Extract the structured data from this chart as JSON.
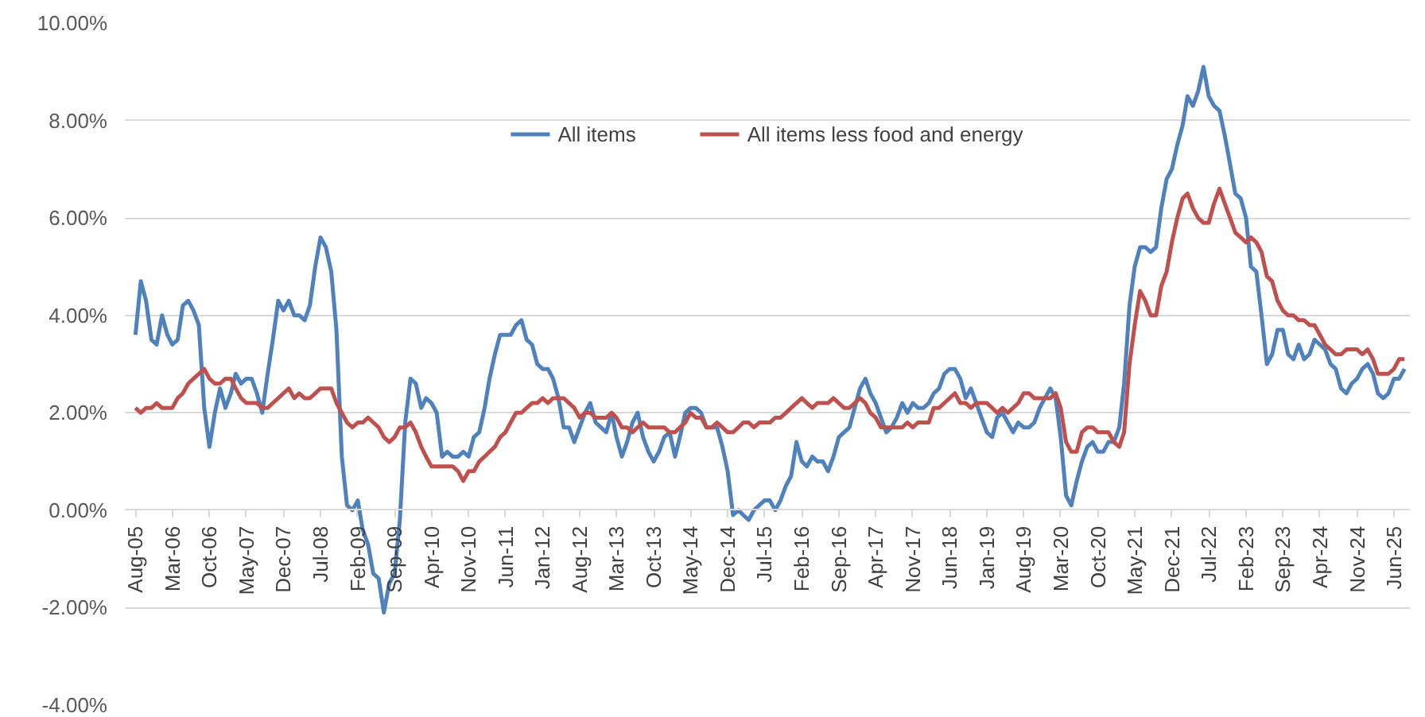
{
  "chart_data": {
    "type": "line",
    "x": [
      "2005-08",
      "2005-09",
      "2005-10",
      "2005-11",
      "2005-12",
      "2006-01",
      "2006-02",
      "2006-03",
      "2006-04",
      "2006-05",
      "2006-06",
      "2006-07",
      "2006-08",
      "2006-09",
      "2006-10",
      "2006-11",
      "2006-12",
      "2007-01",
      "2007-02",
      "2007-03",
      "2007-04",
      "2007-05",
      "2007-06",
      "2007-07",
      "2007-08",
      "2007-09",
      "2007-10",
      "2007-11",
      "2007-12",
      "2008-01",
      "2008-02",
      "2008-03",
      "2008-04",
      "2008-05",
      "2008-06",
      "2008-07",
      "2008-08",
      "2008-09",
      "2008-10",
      "2008-11",
      "2008-12",
      "2009-01",
      "2009-02",
      "2009-03",
      "2009-04",
      "2009-05",
      "2009-06",
      "2009-07",
      "2009-08",
      "2009-09",
      "2009-10",
      "2009-11",
      "2009-12",
      "2010-01",
      "2010-02",
      "2010-03",
      "2010-04",
      "2010-05",
      "2010-06",
      "2010-07",
      "2010-08",
      "2010-09",
      "2010-10",
      "2010-11",
      "2010-12",
      "2011-01",
      "2011-02",
      "2011-03",
      "2011-04",
      "2011-05",
      "2011-06",
      "2011-07",
      "2011-08",
      "2011-09",
      "2011-10",
      "2011-11",
      "2011-12",
      "2012-01",
      "2012-02",
      "2012-03",
      "2012-04",
      "2012-05",
      "2012-06",
      "2012-07",
      "2012-08",
      "2012-09",
      "2012-10",
      "2012-11",
      "2012-12",
      "2013-01",
      "2013-02",
      "2013-03",
      "2013-04",
      "2013-05",
      "2013-06",
      "2013-07",
      "2013-08",
      "2013-09",
      "2013-10",
      "2013-11",
      "2013-12",
      "2014-01",
      "2014-02",
      "2014-03",
      "2014-04",
      "2014-05",
      "2014-06",
      "2014-07",
      "2014-08",
      "2014-09",
      "2014-10",
      "2014-11",
      "2014-12",
      "2015-01",
      "2015-02",
      "2015-03",
      "2015-04",
      "2015-05",
      "2015-06",
      "2015-07",
      "2015-08",
      "2015-09",
      "2015-10",
      "2015-11",
      "2015-12",
      "2016-01",
      "2016-02",
      "2016-03",
      "2016-04",
      "2016-05",
      "2016-06",
      "2016-07",
      "2016-08",
      "2016-09",
      "2016-10",
      "2016-11",
      "2016-12",
      "2017-01",
      "2017-02",
      "2017-03",
      "2017-04",
      "2017-05",
      "2017-06",
      "2017-07",
      "2017-08",
      "2017-09",
      "2017-10",
      "2017-11",
      "2017-12",
      "2018-01",
      "2018-02",
      "2018-03",
      "2018-04",
      "2018-05",
      "2018-06",
      "2018-07",
      "2018-08",
      "2018-09",
      "2018-10",
      "2018-11",
      "2018-12",
      "2019-01",
      "2019-02",
      "2019-03",
      "2019-04",
      "2019-05",
      "2019-06",
      "2019-07",
      "2019-08",
      "2019-09",
      "2019-10",
      "2019-11",
      "2019-12",
      "2020-01",
      "2020-02",
      "2020-03",
      "2020-04",
      "2020-05",
      "2020-06",
      "2020-07",
      "2020-08",
      "2020-09",
      "2020-10",
      "2020-11",
      "2020-12",
      "2021-01",
      "2021-02",
      "2021-03",
      "2021-04",
      "2021-05",
      "2021-06",
      "2021-07",
      "2021-08",
      "2021-09",
      "2021-10",
      "2021-11",
      "2021-12",
      "2022-01",
      "2022-02",
      "2022-03",
      "2022-04",
      "2022-05",
      "2022-06",
      "2022-07",
      "2022-08",
      "2022-09",
      "2022-10",
      "2022-11",
      "2022-12",
      "2023-01",
      "2023-02",
      "2023-03",
      "2023-04",
      "2023-05",
      "2023-06",
      "2023-07",
      "2023-08",
      "2023-09",
      "2023-10",
      "2023-11",
      "2023-12",
      "2024-01",
      "2024-02",
      "2024-03",
      "2024-04",
      "2024-05",
      "2024-06",
      "2024-07",
      "2024-08",
      "2024-09",
      "2024-10",
      "2024-11",
      "2024-12",
      "2025-01",
      "2025-02",
      "2025-03",
      "2025-04",
      "2025-05",
      "2025-06",
      "2025-07",
      "2025-08"
    ],
    "series": [
      {
        "name": "All items",
        "color": "#4f81bd",
        "values": [
          3.6,
          4.7,
          4.3,
          3.5,
          3.4,
          4.0,
          3.6,
          3.4,
          3.5,
          4.2,
          4.3,
          4.1,
          3.8,
          2.1,
          1.3,
          2.0,
          2.5,
          2.1,
          2.4,
          2.8,
          2.6,
          2.7,
          2.7,
          2.4,
          2.0,
          2.8,
          3.5,
          4.3,
          4.1,
          4.3,
          4.0,
          4.0,
          3.9,
          4.2,
          5.0,
          5.6,
          5.4,
          4.9,
          3.7,
          1.1,
          0.1,
          0.0,
          0.2,
          -0.4,
          -0.7,
          -1.3,
          -1.4,
          -2.1,
          -1.5,
          -1.3,
          -0.2,
          1.8,
          2.7,
          2.6,
          2.1,
          2.3,
          2.2,
          2.0,
          1.1,
          1.2,
          1.1,
          1.1,
          1.2,
          1.1,
          1.5,
          1.6,
          2.1,
          2.7,
          3.2,
          3.6,
          3.6,
          3.6,
          3.8,
          3.9,
          3.5,
          3.4,
          3.0,
          2.9,
          2.9,
          2.7,
          2.3,
          1.7,
          1.7,
          1.4,
          1.7,
          2.0,
          2.2,
          1.8,
          1.7,
          1.6,
          2.0,
          1.5,
          1.1,
          1.4,
          1.8,
          2.0,
          1.5,
          1.2,
          1.0,
          1.2,
          1.5,
          1.6,
          1.1,
          1.5,
          2.0,
          2.1,
          2.1,
          2.0,
          1.7,
          1.7,
          1.7,
          1.3,
          0.8,
          -0.1,
          0.0,
          -0.1,
          -0.2,
          0.0,
          0.1,
          0.2,
          0.2,
          0.0,
          0.2,
          0.5,
          0.7,
          1.4,
          1.0,
          0.9,
          1.1,
          1.0,
          1.0,
          0.8,
          1.1,
          1.5,
          1.6,
          1.7,
          2.1,
          2.5,
          2.7,
          2.4,
          2.2,
          1.9,
          1.6,
          1.7,
          1.9,
          2.2,
          2.0,
          2.2,
          2.1,
          2.1,
          2.2,
          2.4,
          2.5,
          2.8,
          2.9,
          2.9,
          2.7,
          2.3,
          2.5,
          2.2,
          1.9,
          1.6,
          1.5,
          1.9,
          2.0,
          1.8,
          1.6,
          1.8,
          1.7,
          1.7,
          1.8,
          2.1,
          2.3,
          2.5,
          2.3,
          1.5,
          0.3,
          0.1,
          0.6,
          1.0,
          1.3,
          1.4,
          1.2,
          1.2,
          1.4,
          1.4,
          1.7,
          2.6,
          4.2,
          5.0,
          5.4,
          5.4,
          5.3,
          5.4,
          6.2,
          6.8,
          7.0,
          7.5,
          7.9,
          8.5,
          8.3,
          8.6,
          9.1,
          8.5,
          8.3,
          8.2,
          7.7,
          7.1,
          6.5,
          6.4,
          6.0,
          5.0,
          4.9,
          4.0,
          3.0,
          3.2,
          3.7,
          3.7,
          3.2,
          3.1,
          3.4,
          3.1,
          3.2,
          3.5,
          3.4,
          3.3,
          3.0,
          2.9,
          2.5,
          2.4,
          2.6,
          2.7,
          2.9,
          3.0,
          2.8,
          2.4,
          2.3,
          2.4,
          2.7,
          2.7,
          2.9
        ]
      },
      {
        "name": "All items less food and energy",
        "color": "#c0504d",
        "values": [
          2.1,
          2.0,
          2.1,
          2.1,
          2.2,
          2.1,
          2.1,
          2.1,
          2.3,
          2.4,
          2.6,
          2.7,
          2.8,
          2.9,
          2.7,
          2.6,
          2.6,
          2.7,
          2.7,
          2.5,
          2.3,
          2.2,
          2.2,
          2.2,
          2.1,
          2.1,
          2.2,
          2.3,
          2.4,
          2.5,
          2.3,
          2.4,
          2.3,
          2.3,
          2.4,
          2.5,
          2.5,
          2.5,
          2.2,
          2.0,
          1.8,
          1.7,
          1.8,
          1.8,
          1.9,
          1.8,
          1.7,
          1.5,
          1.4,
          1.5,
          1.7,
          1.7,
          1.8,
          1.6,
          1.3,
          1.1,
          0.9,
          0.9,
          0.9,
          0.9,
          0.9,
          0.8,
          0.6,
          0.8,
          0.8,
          1.0,
          1.1,
          1.2,
          1.3,
          1.5,
          1.6,
          1.8,
          2.0,
          2.0,
          2.1,
          2.2,
          2.2,
          2.3,
          2.2,
          2.3,
          2.3,
          2.3,
          2.2,
          2.1,
          1.9,
          2.0,
          2.0,
          1.9,
          1.9,
          1.9,
          2.0,
          1.9,
          1.7,
          1.7,
          1.6,
          1.7,
          1.8,
          1.7,
          1.7,
          1.7,
          1.7,
          1.6,
          1.6,
          1.7,
          1.8,
          2.0,
          1.9,
          1.9,
          1.7,
          1.7,
          1.8,
          1.7,
          1.6,
          1.6,
          1.7,
          1.8,
          1.8,
          1.7,
          1.8,
          1.8,
          1.8,
          1.9,
          1.9,
          2.0,
          2.1,
          2.2,
          2.3,
          2.2,
          2.1,
          2.2,
          2.2,
          2.2,
          2.3,
          2.2,
          2.1,
          2.1,
          2.2,
          2.3,
          2.2,
          2.0,
          1.9,
          1.7,
          1.7,
          1.7,
          1.7,
          1.7,
          1.8,
          1.7,
          1.8,
          1.8,
          1.8,
          2.1,
          2.1,
          2.2,
          2.3,
          2.4,
          2.2,
          2.2,
          2.1,
          2.2,
          2.2,
          2.2,
          2.1,
          2.0,
          2.1,
          2.0,
          2.1,
          2.2,
          2.4,
          2.4,
          2.3,
          2.3,
          2.3,
          2.3,
          2.4,
          2.1,
          1.4,
          1.2,
          1.2,
          1.6,
          1.7,
          1.7,
          1.6,
          1.6,
          1.6,
          1.4,
          1.3,
          1.6,
          3.0,
          3.8,
          4.5,
          4.3,
          4.0,
          4.0,
          4.6,
          4.9,
          5.5,
          6.0,
          6.4,
          6.5,
          6.2,
          6.0,
          5.9,
          5.9,
          6.3,
          6.6,
          6.3,
          6.0,
          5.7,
          5.6,
          5.5,
          5.6,
          5.5,
          5.3,
          4.8,
          4.7,
          4.3,
          4.1,
          4.0,
          4.0,
          3.9,
          3.9,
          3.8,
          3.8,
          3.6,
          3.4,
          3.3,
          3.2,
          3.2,
          3.3,
          3.3,
          3.3,
          3.2,
          3.3,
          3.1,
          2.8,
          2.8,
          2.8,
          2.9,
          3.1,
          3.1
        ]
      }
    ],
    "xlim": [
      "2005-06",
      "2025-09"
    ],
    "xticks": [
      {
        "value": "2005-08",
        "label": "Aug-05"
      },
      {
        "value": "2006-03",
        "label": "Mar-06"
      },
      {
        "value": "2006-10",
        "label": "Oct-06"
      },
      {
        "value": "2007-05",
        "label": "May-07"
      },
      {
        "value": "2007-12",
        "label": "Dec-07"
      },
      {
        "value": "2008-07",
        "label": "Jul-08"
      },
      {
        "value": "2009-02",
        "label": "Feb-09"
      },
      {
        "value": "2009-09",
        "label": "Sep-09"
      },
      {
        "value": "2010-04",
        "label": "Apr-10"
      },
      {
        "value": "2010-11",
        "label": "Nov-10"
      },
      {
        "value": "2011-06",
        "label": "Jun-11"
      },
      {
        "value": "2012-01",
        "label": "Jan-12"
      },
      {
        "value": "2012-08",
        "label": "Aug-12"
      },
      {
        "value": "2013-03",
        "label": "Mar-13"
      },
      {
        "value": "2013-10",
        "label": "Oct-13"
      },
      {
        "value": "2014-05",
        "label": "May-14"
      },
      {
        "value": "2014-12",
        "label": "Dec-14"
      },
      {
        "value": "2015-07",
        "label": "Jul-15"
      },
      {
        "value": "2016-02",
        "label": "Feb-16"
      },
      {
        "value": "2016-09",
        "label": "Sep-16"
      },
      {
        "value": "2017-04",
        "label": "Apr-17"
      },
      {
        "value": "2017-11",
        "label": "Nov-17"
      },
      {
        "value": "2018-06",
        "label": "Jun-18"
      },
      {
        "value": "2019-01",
        "label": "Jan-19"
      },
      {
        "value": "2019-08",
        "label": "Aug-19"
      },
      {
        "value": "2020-03",
        "label": "Mar-20"
      },
      {
        "value": "2020-10",
        "label": "Oct-20"
      },
      {
        "value": "2021-05",
        "label": "May-21"
      },
      {
        "value": "2021-12",
        "label": "Dec-21"
      },
      {
        "value": "2022-07",
        "label": "Jul-22"
      },
      {
        "value": "2023-02",
        "label": "Feb-23"
      },
      {
        "value": "2023-09",
        "label": "Sep-23"
      },
      {
        "value": "2024-04",
        "label": "Apr-24"
      },
      {
        "value": "2024-11",
        "label": "Nov-24"
      },
      {
        "value": "2025-06",
        "label": "Jun-25"
      }
    ],
    "ylim": [
      -4,
      10
    ],
    "yticks": [
      {
        "value": -4,
        "label": "-4.00%"
      },
      {
        "value": -2,
        "label": "-2.00%"
      },
      {
        "value": 0,
        "label": "0.00%"
      },
      {
        "value": 2,
        "label": "2.00%"
      },
      {
        "value": 4,
        "label": "4.00%"
      },
      {
        "value": 6,
        "label": "6.00%"
      },
      {
        "value": 8,
        "label": "8.00%"
      },
      {
        "value": 10,
        "label": "10.00%"
      }
    ],
    "grid": "y",
    "legend": "top",
    "line_style": "solid",
    "marker": "none"
  }
}
